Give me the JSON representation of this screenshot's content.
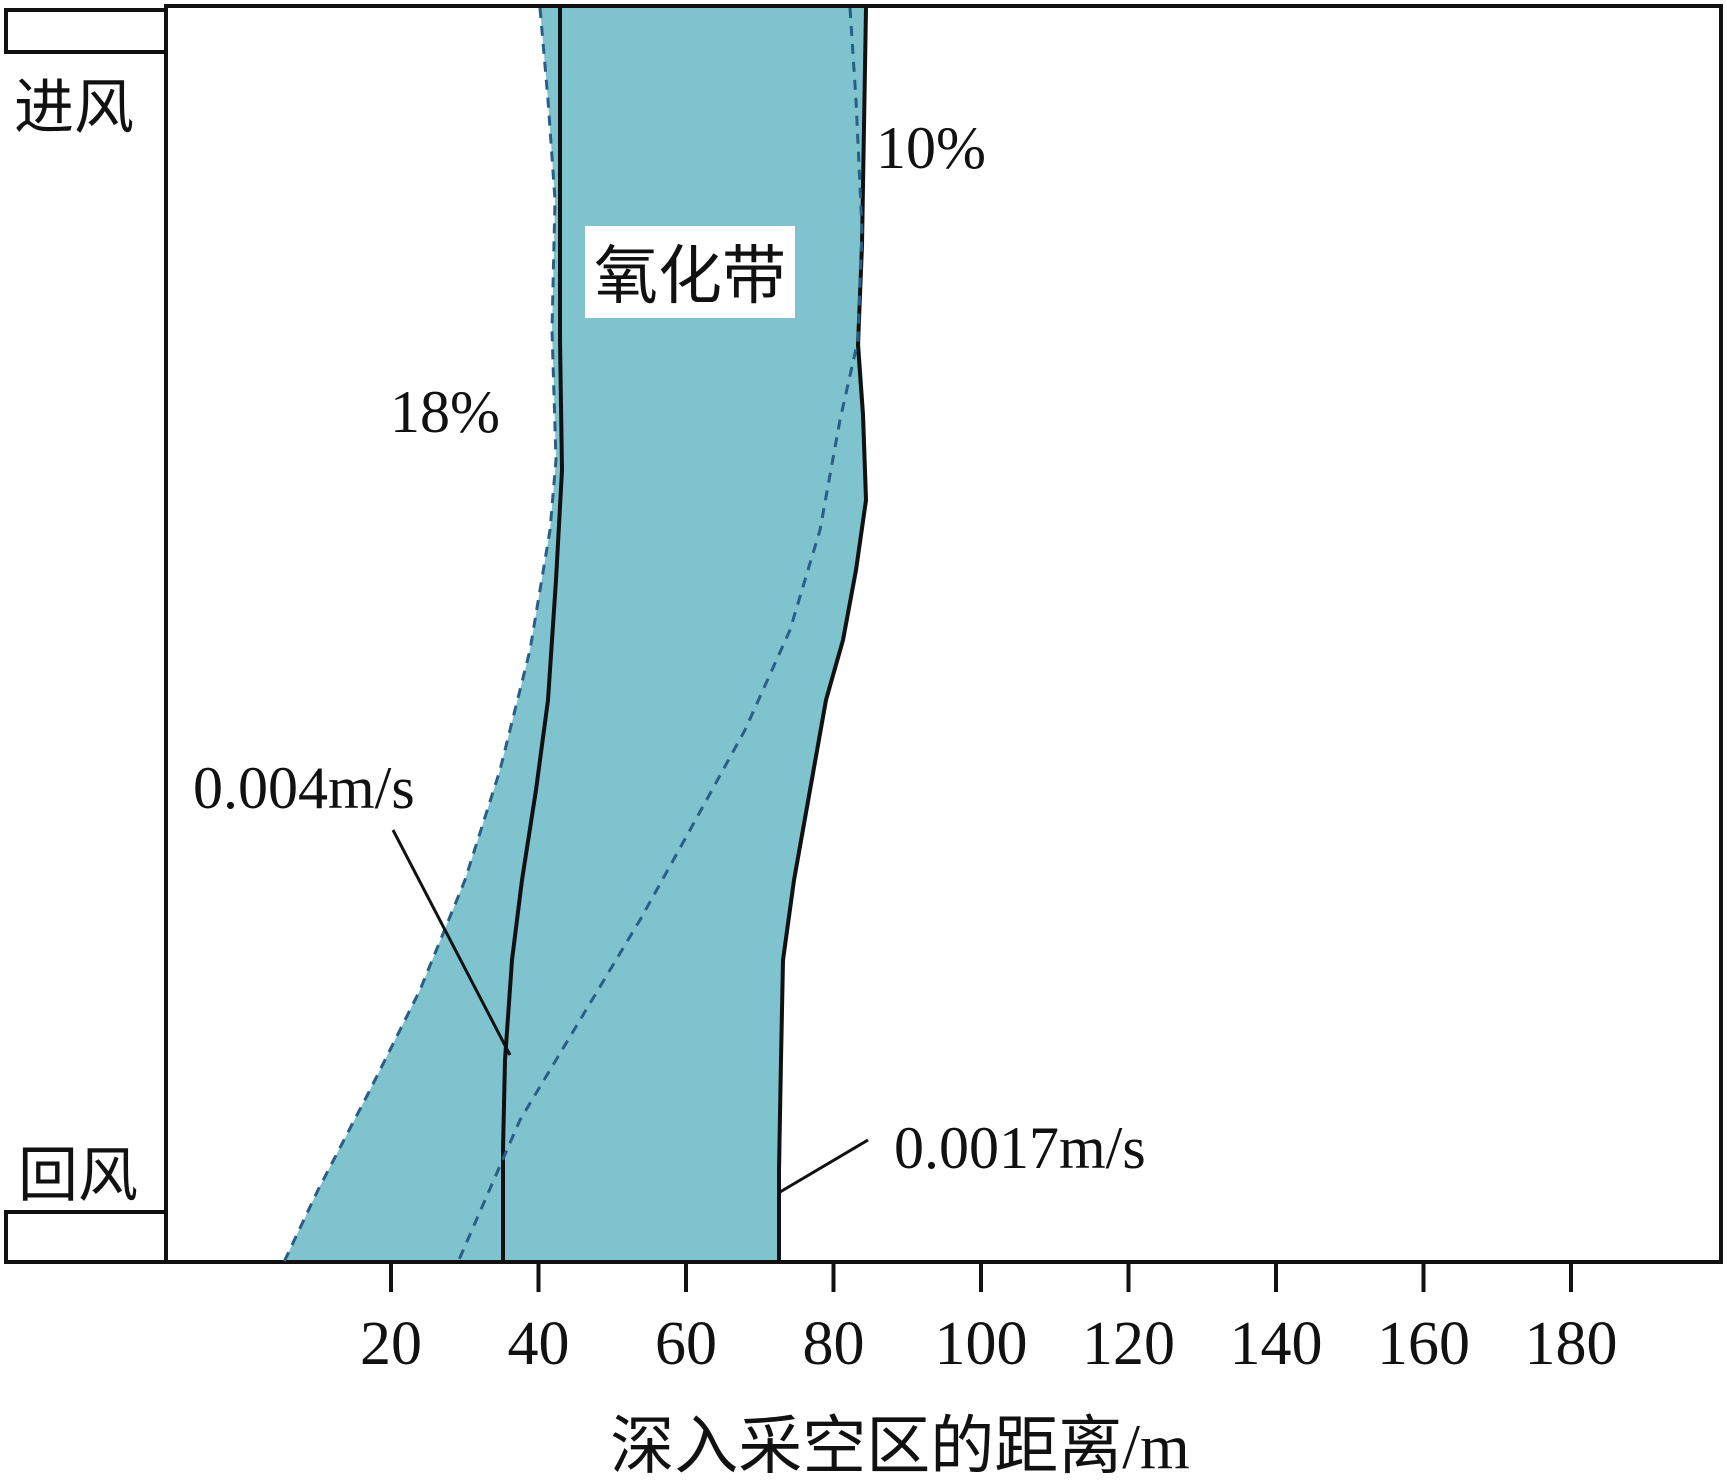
{
  "colors": {
    "zone_fill": "#7fc3cf",
    "zone_fill_light": "#a4d6de",
    "line": "#111111",
    "dashed_line": "#2a5f85",
    "background": "#ffffff"
  },
  "labels": {
    "inlet": "进风",
    "return": "回风",
    "zone": "氧化带",
    "pct_10": "10%",
    "pct_18": "18%",
    "speed_high": "0.004m/s",
    "speed_low": "0.0017m/s"
  },
  "x_axis": {
    "title": "深入采空区的距离/m",
    "ticks": [
      {
        "value": 20,
        "label": "20"
      },
      {
        "value": 40,
        "label": "40"
      },
      {
        "value": 60,
        "label": "60"
      },
      {
        "value": 80,
        "label": "80"
      },
      {
        "value": 100,
        "label": "100"
      },
      {
        "value": 120,
        "label": "120"
      },
      {
        "value": 140,
        "label": "140"
      },
      {
        "value": 160,
        "label": "160"
      },
      {
        "value": 180,
        "label": "180"
      }
    ]
  }
}
